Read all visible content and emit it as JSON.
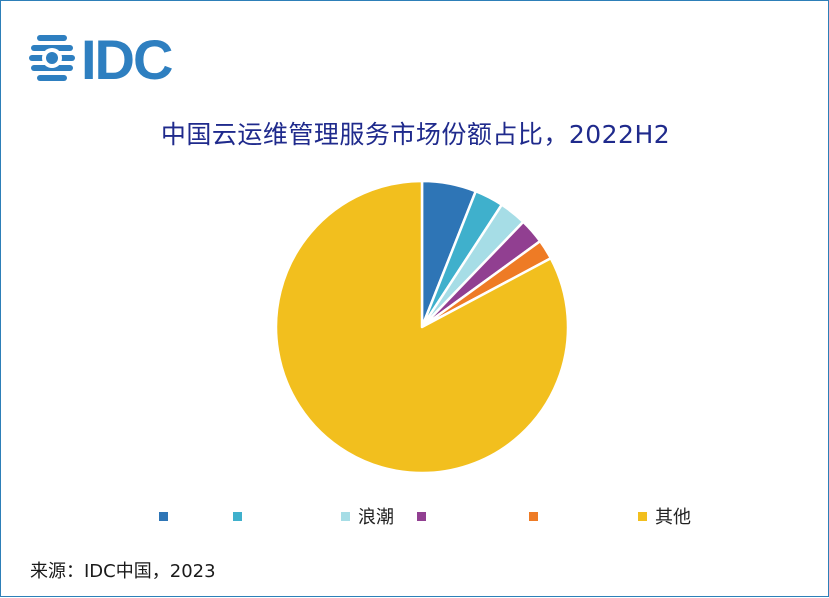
{
  "logo": {
    "text": "IDC",
    "color": "#2e7fc0"
  },
  "chart_data": {
    "type": "pie",
    "title": "中国云运维管理服务市场份额占比，2022H2",
    "slices": [
      {
        "label": "",
        "value": 6.0,
        "color": "#2e75b6"
      },
      {
        "label": "",
        "value": 3.2,
        "color": "#3fb0cc"
      },
      {
        "label": "浪潮",
        "value": 3.0,
        "color": "#a6dde6"
      },
      {
        "label": "",
        "value": 2.8,
        "color": "#913f91"
      },
      {
        "label": "",
        "value": 2.2,
        "color": "#ee7b25"
      },
      {
        "label": "其他",
        "value": 82.8,
        "color": "#f2bf1e"
      }
    ],
    "legend_position": "bottom"
  },
  "source": "来源：IDC中国，2023"
}
